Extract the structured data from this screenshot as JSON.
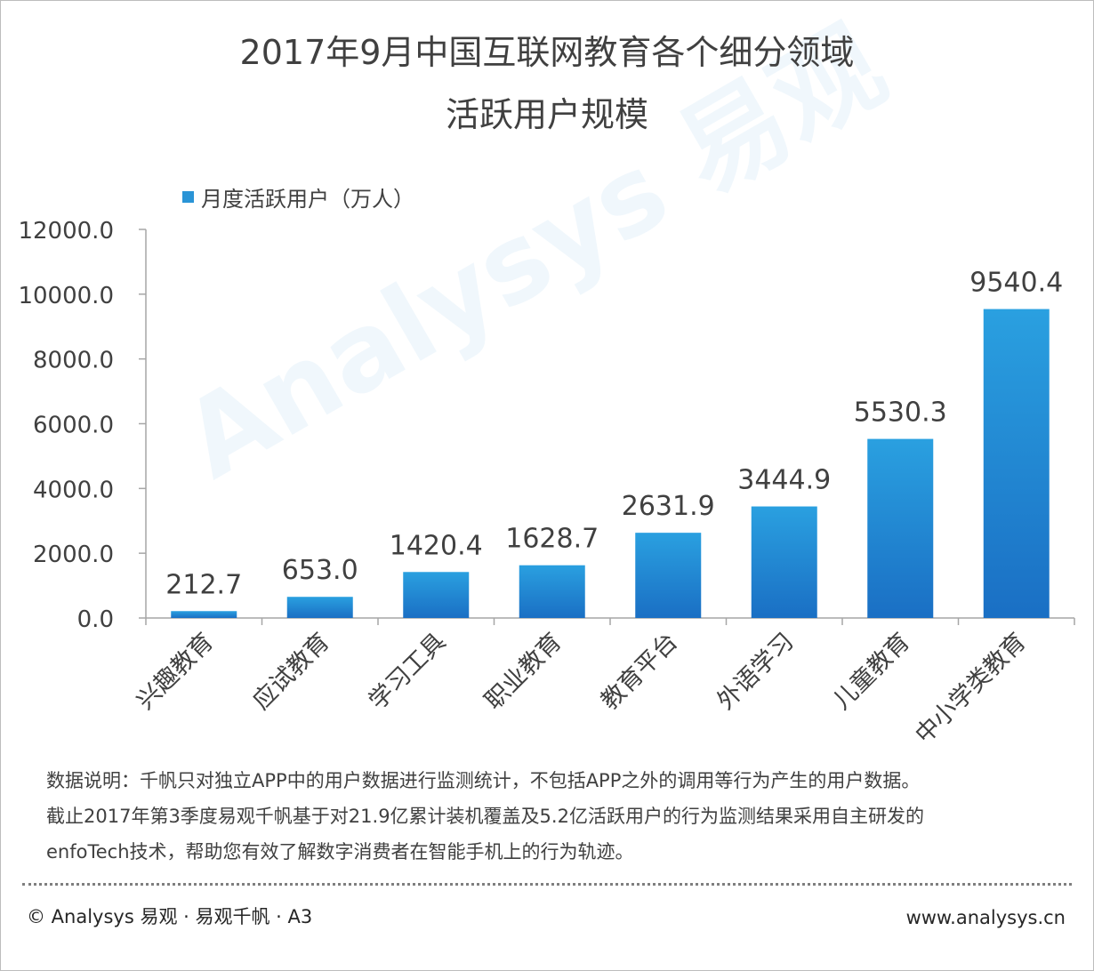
{
  "title": {
    "line1": "2017年9月中国互联网教育各个细分领域",
    "line2": "活跃用户规模"
  },
  "legend_label": "月度活跃用户（万人）",
  "chart_data": {
    "type": "bar",
    "categories": [
      "兴趣教育",
      "应试教育",
      "学习工具",
      "职业教育",
      "教育平台",
      "外语学习",
      "儿童教育",
      "中小学类教育"
    ],
    "series": [
      {
        "name": "月度活跃用户（万人）",
        "values": [
          212.7,
          653.0,
          1420.4,
          1628.7,
          2631.9,
          3444.9,
          5530.3,
          9540.4
        ]
      }
    ],
    "value_labels": [
      "212.7",
      "653.0",
      "1420.4",
      "1628.7",
      "2631.9",
      "3444.9",
      "5530.3",
      "9540.4"
    ],
    "yticks": [
      0,
      2000,
      4000,
      6000,
      8000,
      10000,
      12000
    ],
    "ytick_labels": [
      "0.0",
      "2000.0",
      "4000.0",
      "6000.0",
      "8000.0",
      "10000.0",
      "12000.0"
    ],
    "ylim": [
      0,
      12000
    ],
    "bar_color": "#1f87d6",
    "legend_position": "top-left",
    "grid": false
  },
  "note": {
    "line1": "数据说明：千帆只对独立APP中的用户数据进行监测统计，不包括APP之外的调用等行为产生的用户数据。",
    "line2": "截止2017年第3季度易观千帆基于对21.9亿累计装机覆盖及5.2亿活跃用户的行为监测结果采用自主研发的",
    "line3": "enfoTech技术，帮助您有效了解数字消费者在智能手机上的行为轨迹。"
  },
  "footer": {
    "copyright": "© Analysys 易观 · 易观千帆 · A3",
    "website": "www.analysys.cn"
  },
  "watermark": "Analysys 易观"
}
